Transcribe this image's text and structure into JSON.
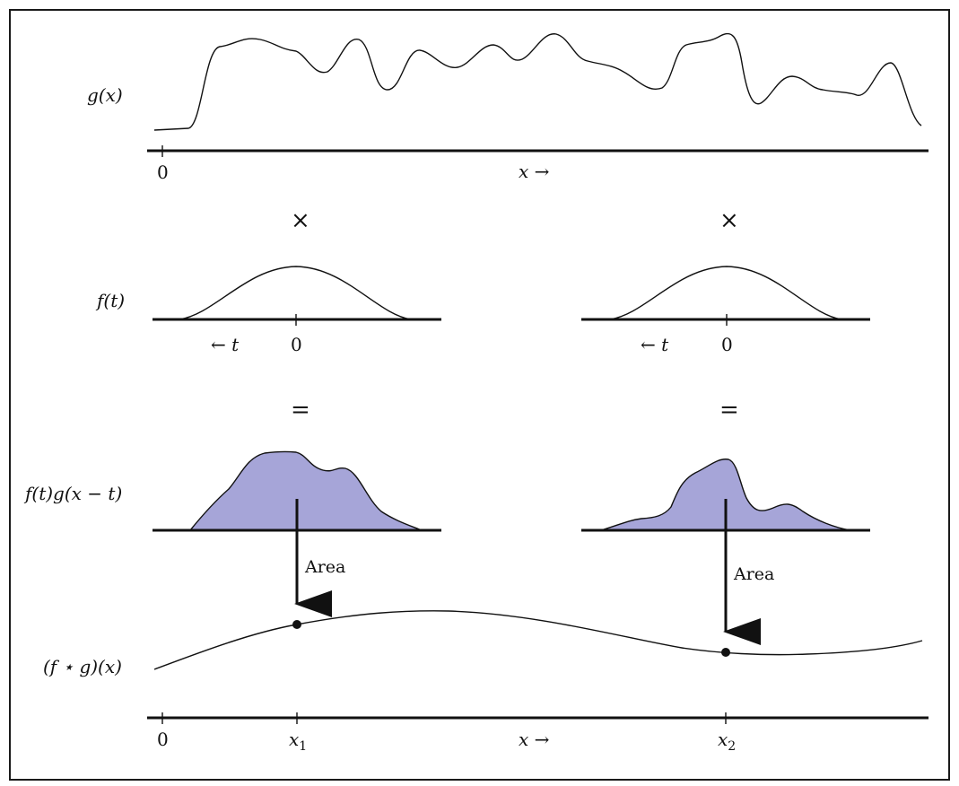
{
  "labels": {
    "g_label": "g(x)",
    "f_label": "f(t)",
    "product_label": "f(t)g(x − t)",
    "result_label": "(f ⋆ g)(x)",
    "zero": "0",
    "x_axis": "x →",
    "t_axis": "← t",
    "times_symbol": "×",
    "equals_symbol": "=",
    "area": "Area",
    "x1": "x",
    "x1_sub": "1",
    "x2": "x",
    "x2_sub": "2"
  },
  "colors": {
    "fill": "#a6a5d8",
    "stroke": "#111111"
  }
}
